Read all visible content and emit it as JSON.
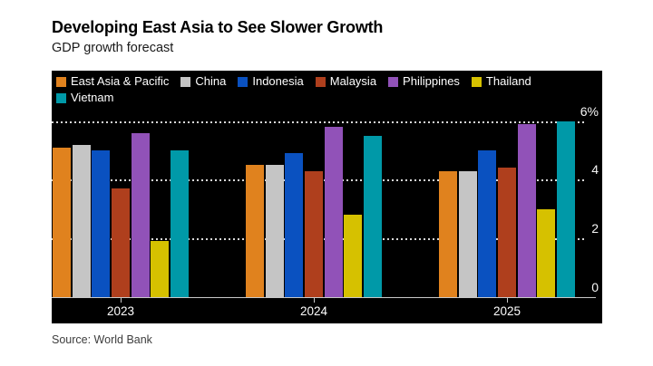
{
  "header": {
    "title": "Developing East Asia to See Slower Growth",
    "subtitle": "GDP growth forecast"
  },
  "source": "Source: World Bank",
  "colors": {
    "panel_bg": "#000000",
    "gridline": "#ffffff",
    "baseline": "#c8c8c8",
    "axis_text": "#f5f5f5",
    "legend_text": "#ffffff",
    "title_text": "#000000",
    "source_text": "#3d3d3d"
  },
  "chart_data": {
    "type": "bar",
    "title": "Developing East Asia to See Slower Growth",
    "subtitle": "GDP growth forecast",
    "categories": [
      "2023",
      "2024",
      "2025"
    ],
    "series": [
      {
        "name": "East Asia & Pacific",
        "color": "#E0821E",
        "values": [
          5.1,
          4.5,
          4.3
        ]
      },
      {
        "name": "China",
        "color": "#C5C5C5",
        "values": [
          5.2,
          4.5,
          4.3
        ]
      },
      {
        "name": "Indonesia",
        "color": "#0A51C0",
        "values": [
          5.0,
          4.9,
          5.0
        ]
      },
      {
        "name": "Malaysia",
        "color": "#AF3F1D",
        "values": [
          3.7,
          4.3,
          4.4
        ]
      },
      {
        "name": "Philippines",
        "color": "#9152B8",
        "values": [
          5.6,
          5.8,
          5.9
        ]
      },
      {
        "name": "Thailand",
        "color": "#D6C100",
        "values": [
          1.9,
          2.8,
          3.0
        ]
      },
      {
        "name": "Vietnam",
        "color": "#0099A8",
        "values": [
          5.0,
          5.5,
          6.0
        ]
      }
    ],
    "xlabel": "",
    "ylabel": "",
    "ylim": [
      0,
      6
    ],
    "y_ticks": [
      0,
      2,
      4,
      6
    ],
    "y_tick_labels": [
      "0",
      "2",
      "4",
      "6%"
    ],
    "grid": "horizontal-dotted",
    "legend_position": "top",
    "unit": "%"
  }
}
